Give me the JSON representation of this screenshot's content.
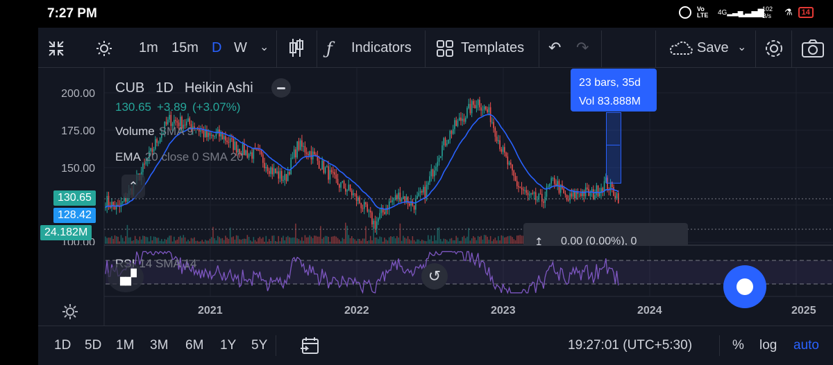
{
  "status": {
    "time": "7:27 PM",
    "net_speed": "102\nB/s",
    "battery": "14"
  },
  "toolbar": {
    "intervals": [
      "1m",
      "15m",
      "D",
      "W"
    ],
    "indicators_label": "Indicators",
    "templates_label": "Templates",
    "save_label": "Save"
  },
  "legend": {
    "symbol": "CUB",
    "interval": "1D",
    "chart_style": "Heikin Ashi",
    "last": "130.65",
    "change": "+3.89",
    "change_pct": "(+3.07%)",
    "volume_label": "Volume",
    "volume_ma": "SMA 9",
    "ema_label": "EMA",
    "ema_params": "20 close 0 SMA 20",
    "rsi_label": "RSI",
    "rsi_params": "14 SMA 14"
  },
  "measure": {
    "bars": "23 bars, 35d",
    "vol": "Vol 83.888M"
  },
  "price_tags": {
    "last": "130.65",
    "ema": "128.42",
    "volume": "24.182M"
  },
  "position_bar": {
    "text": "0.00 (0.00%), 0"
  },
  "bottom": {
    "ranges": [
      "1D",
      "5D",
      "1M",
      "3M",
      "6M",
      "1Y",
      "5Y"
    ],
    "clock": "19:27:01 (UTC+5:30)",
    "percent": "%",
    "log": "log",
    "auto": "auto"
  },
  "colors": {
    "up": "#26a69a",
    "down": "#ef5350",
    "ema": "#2962ff",
    "rsi": "#7e57c2",
    "accent": "#2962ff"
  },
  "chart_data": {
    "type": "candlestick",
    "title": "CUB 1D Heikin Ashi",
    "x_ticks": [
      "2021",
      "2022",
      "2023",
      "2024",
      "2025"
    ],
    "y_ticks": [
      200.0,
      175.0,
      150.0,
      100.0
    ],
    "ylim": [
      98,
      205
    ],
    "series": [
      {
        "name": "Price (Heikin Ashi close, approx.)",
        "points": [
          [
            "2020-06",
            128
          ],
          [
            "2020-07",
            122
          ],
          [
            "2020-08",
            135
          ],
          [
            "2020-09",
            150
          ],
          [
            "2020-10",
            168
          ],
          [
            "2020-11",
            182
          ],
          [
            "2020-12",
            180
          ],
          [
            "2021-01",
            178
          ],
          [
            "2021-02",
            170
          ],
          [
            "2021-03",
            172
          ],
          [
            "2021-04",
            165
          ],
          [
            "2021-05",
            160
          ],
          [
            "2021-06",
            158
          ],
          [
            "2021-07",
            148
          ],
          [
            "2021-08",
            142
          ],
          [
            "2021-09",
            165
          ],
          [
            "2021-10",
            160
          ],
          [
            "2021-11",
            150
          ],
          [
            "2021-12",
            140
          ],
          [
            "2022-01",
            135
          ],
          [
            "2022-02",
            125
          ],
          [
            "2022-03",
            112
          ],
          [
            "2022-04",
            125
          ],
          [
            "2022-05",
            132
          ],
          [
            "2022-06",
            125
          ],
          [
            "2022-07",
            135
          ],
          [
            "2022-08",
            160
          ],
          [
            "2022-09",
            175
          ],
          [
            "2022-10",
            185
          ],
          [
            "2022-11",
            195
          ],
          [
            "2022-12",
            185
          ],
          [
            "2023-01",
            160
          ],
          [
            "2023-02",
            140
          ],
          [
            "2023-03",
            130
          ],
          [
            "2023-04",
            128
          ],
          [
            "2023-05",
            142
          ],
          [
            "2023-06",
            128
          ],
          [
            "2023-07",
            134
          ],
          [
            "2023-08",
            132
          ],
          [
            "2023-09",
            140
          ],
          [
            "2023-10",
            130.65
          ]
        ]
      },
      {
        "name": "EMA 20 (approx.)",
        "value_last": 128.42
      },
      {
        "name": "Volume",
        "value_last": "24.182M"
      },
      {
        "name": "RSI 14",
        "band": [
          30,
          70
        ]
      }
    ]
  }
}
